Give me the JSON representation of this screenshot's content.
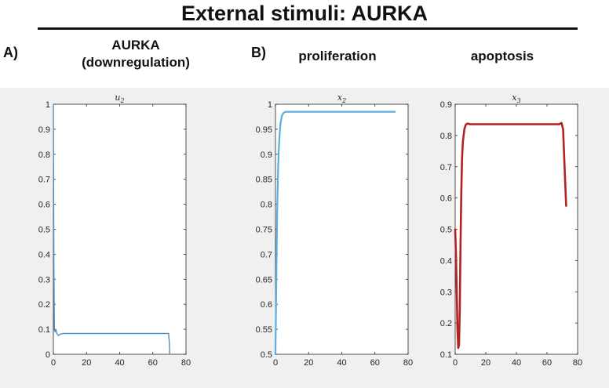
{
  "header": {
    "title": "External stimuli: AURKA"
  },
  "panels": {
    "a_letter": "A)",
    "a_heading_line1": "AURKA",
    "a_heading_line2": "(downregulation)",
    "b_letter": "B)",
    "b_heading_proliferation": "proliferation",
    "b_heading_apoptosis": "apoptosis"
  },
  "chart_data": [
    {
      "type": "line",
      "title": "u2",
      "xlim": [
        0,
        80
      ],
      "ylim": [
        0,
        1
      ],
      "x_ticks": [
        0,
        20,
        40,
        60,
        80
      ],
      "y_ticks": [
        0,
        0.1,
        0.2,
        0.3,
        0.4,
        0.5,
        0.6,
        0.7,
        0.8,
        0.9,
        1
      ],
      "grid": false,
      "series": [
        {
          "color": "#4a90c8",
          "x": [
            0,
            0.3,
            0.6,
            1.0,
            1.5,
            2.0,
            3.0,
            4.0,
            5.0,
            6.0,
            10,
            20,
            30,
            40,
            50,
            60,
            69.5,
            70,
            70.2
          ],
          "y": [
            1.0,
            0.4,
            0.1,
            0.09,
            0.1,
            0.085,
            0.075,
            0.08,
            0.082,
            0.083,
            0.083,
            0.083,
            0.083,
            0.083,
            0.083,
            0.083,
            0.083,
            0.04,
            0.0
          ]
        }
      ]
    },
    {
      "type": "line",
      "title": "x2",
      "xlim": [
        0,
        80
      ],
      "ylim": [
        0.5,
        1
      ],
      "x_ticks": [
        0,
        20,
        40,
        60,
        80
      ],
      "y_ticks": [
        0.5,
        0.55,
        0.6,
        0.65,
        0.7,
        0.75,
        0.8,
        0.85,
        0.9,
        0.95,
        1
      ],
      "grid": false,
      "series": [
        {
          "color": "#5aaee0",
          "x": [
            0,
            0.5,
            1,
            1.5,
            2,
            2.5,
            3,
            3.5,
            4,
            5,
            6,
            8,
            10,
            20,
            40,
            60,
            72
          ],
          "y": [
            0.5,
            0.65,
            0.78,
            0.86,
            0.91,
            0.94,
            0.96,
            0.97,
            0.978,
            0.983,
            0.985,
            0.985,
            0.985,
            0.985,
            0.985,
            0.985,
            0.985
          ]
        }
      ]
    },
    {
      "type": "line",
      "title": "x3",
      "xlim": [
        0,
        80
      ],
      "ylim": [
        0.1,
        0.9
      ],
      "x_ticks": [
        0,
        20,
        40,
        60,
        80
      ],
      "y_ticks": [
        0.1,
        0.2,
        0.3,
        0.4,
        0.5,
        0.6,
        0.7,
        0.8,
        0.9
      ],
      "grid": false,
      "series": [
        {
          "color": "#b22222",
          "x": [
            0,
            0.5,
            1,
            1.5,
            2,
            2.5,
            3,
            3.5,
            4,
            4.5,
            5,
            6,
            7,
            8,
            10,
            20,
            40,
            60,
            68,
            69.5,
            70.5,
            71.5,
            72.5
          ],
          "y": [
            0.5,
            0.42,
            0.3,
            0.18,
            0.12,
            0.13,
            0.25,
            0.45,
            0.62,
            0.73,
            0.78,
            0.82,
            0.835,
            0.838,
            0.836,
            0.836,
            0.836,
            0.836,
            0.836,
            0.84,
            0.82,
            0.7,
            0.575
          ]
        }
      ]
    }
  ]
}
